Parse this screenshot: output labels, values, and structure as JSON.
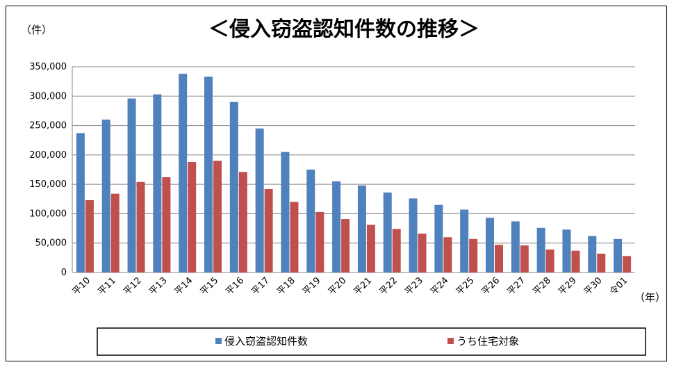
{
  "chart_data": {
    "type": "bar",
    "title": "＜侵入窃盗認知件数の推移＞",
    "y_unit": "（件）",
    "x_unit": "（年）",
    "categories": [
      "平10",
      "平11",
      "平12",
      "平13",
      "平14",
      "平15",
      "平16",
      "平17",
      "平18",
      "平19",
      "平20",
      "平21",
      "平22",
      "平23",
      "平24",
      "平25",
      "平26",
      "平27",
      "平28",
      "平29",
      "平30",
      "令01"
    ],
    "yticks": [
      "0",
      "50,000",
      "100,000",
      "150,000",
      "200,000",
      "250,000",
      "300,000",
      "350,000"
    ],
    "ylim": [
      0,
      350000
    ],
    "grid": true,
    "legend_position": "bottom",
    "series": [
      {
        "name": "侵入窃盗認知件数",
        "color": "#4F81BD",
        "values": [
          237000,
          260000,
          296000,
          303000,
          338000,
          333000,
          290000,
          245000,
          205000,
          175000,
          155000,
          148000,
          136000,
          126000,
          115000,
          107000,
          93000,
          87000,
          76000,
          73000,
          62000,
          57000
        ]
      },
      {
        "name": "うち住宅対象",
        "color": "#C0504D",
        "values": [
          123000,
          134000,
          154000,
          162000,
          188000,
          190000,
          171000,
          142000,
          120000,
          103000,
          91000,
          81000,
          74000,
          66000,
          60000,
          57000,
          47000,
          46000,
          39000,
          37000,
          32000,
          28000
        ]
      }
    ]
  }
}
